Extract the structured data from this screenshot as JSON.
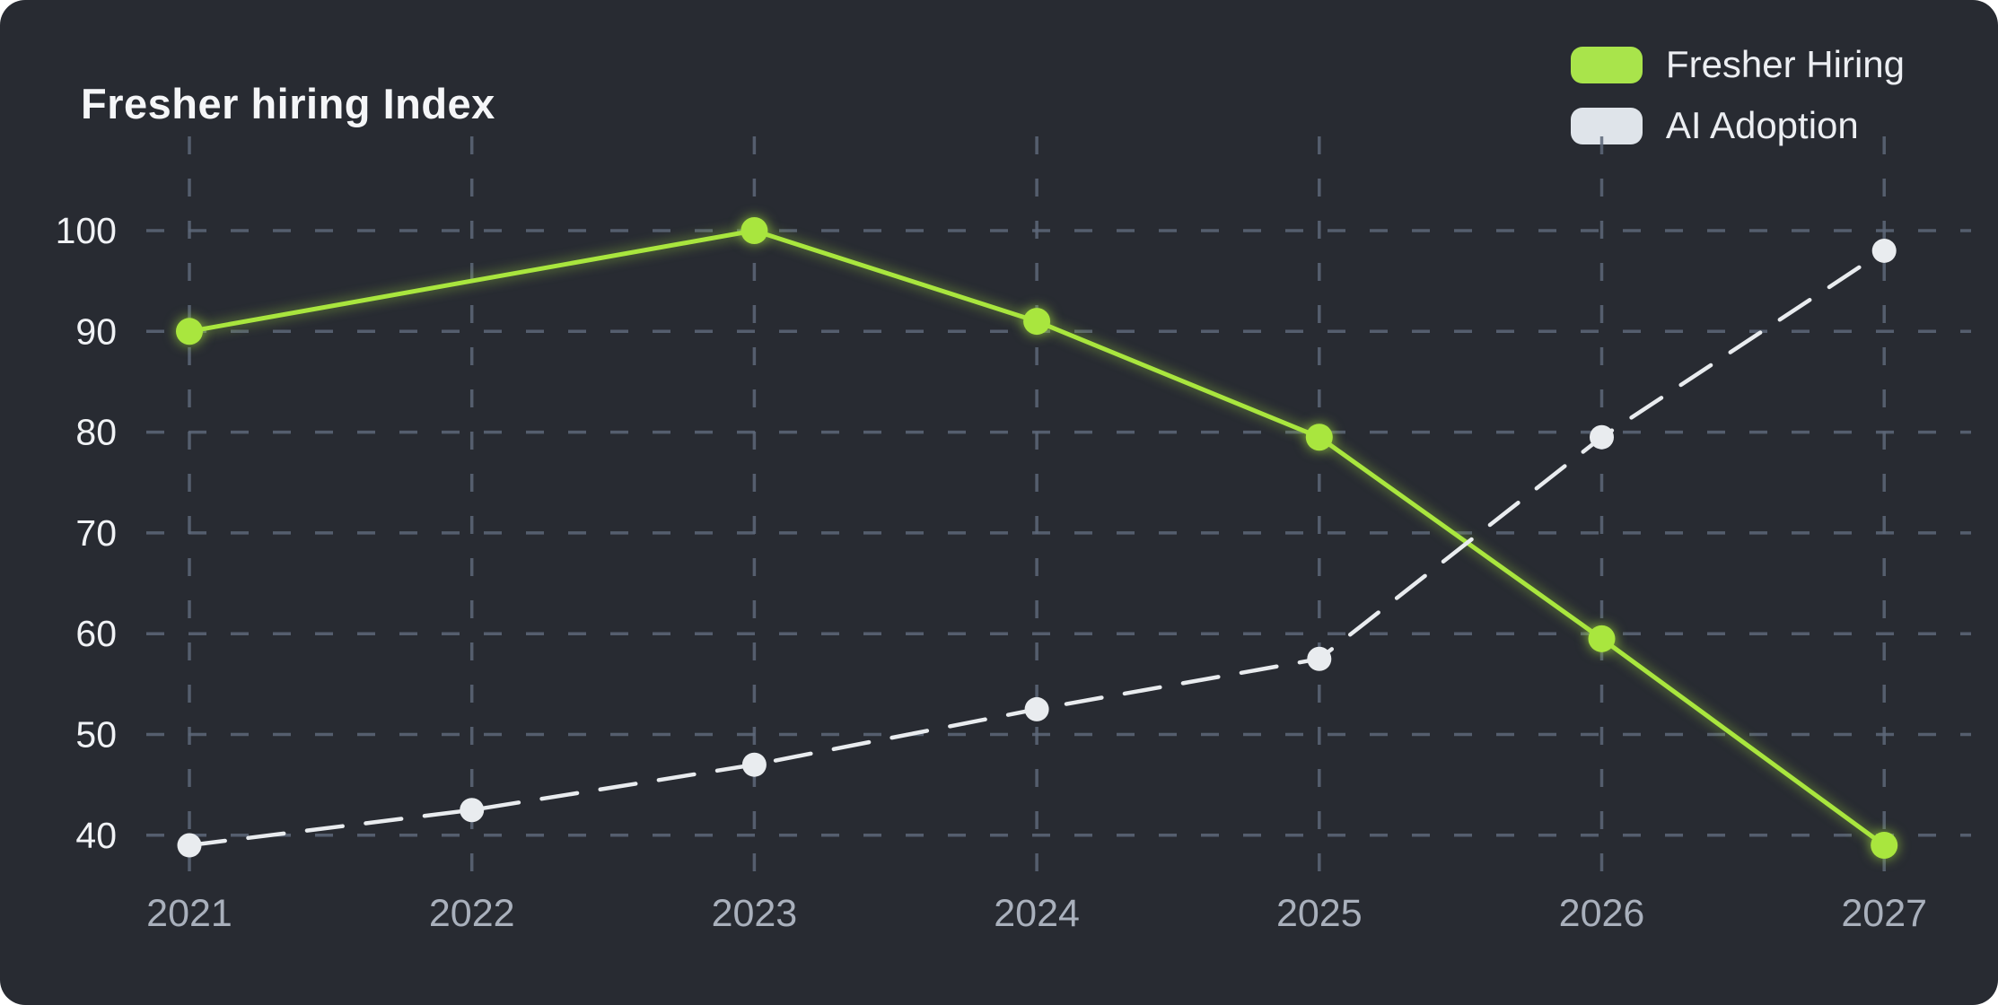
{
  "title": "Fresher hiring Index",
  "legend": [
    {
      "label": "Fresher Hiring",
      "color": "#a9e44b"
    },
    {
      "label": "AI Adoption",
      "color": "#dfe4ea"
    }
  ],
  "colors": {
    "background": "#282b32",
    "grid": "#5d6779",
    "y_tick_text": "#f0f2f5",
    "x_tick_text": "#a9b0bc"
  },
  "chart_data": {
    "type": "line",
    "title": "Fresher hiring Index",
    "categories": [
      "2021",
      "2022",
      "2023",
      "2024",
      "2025",
      "2026",
      "2027"
    ],
    "y_ticks": [
      100,
      90,
      80,
      70,
      60,
      50,
      40
    ],
    "ylim": [
      36,
      104
    ],
    "xlabel": "",
    "ylabel": "",
    "grid": "dashed-both",
    "legend_position": "top-right",
    "series": [
      {
        "name": "Fresher Hiring",
        "color": "#a9e63e",
        "line_style": "solid",
        "values": [
          90,
          95,
          100,
          91,
          79.5,
          59.5,
          39
        ],
        "markers": [
          true,
          false,
          true,
          true,
          true,
          true,
          true
        ]
      },
      {
        "name": "AI Adoption",
        "color": "#e9ecef",
        "line_style": "dashed",
        "values": [
          39,
          42.5,
          47,
          52.5,
          57.5,
          79.5,
          98
        ],
        "markers": [
          true,
          true,
          true,
          true,
          true,
          true,
          true
        ]
      }
    ]
  }
}
